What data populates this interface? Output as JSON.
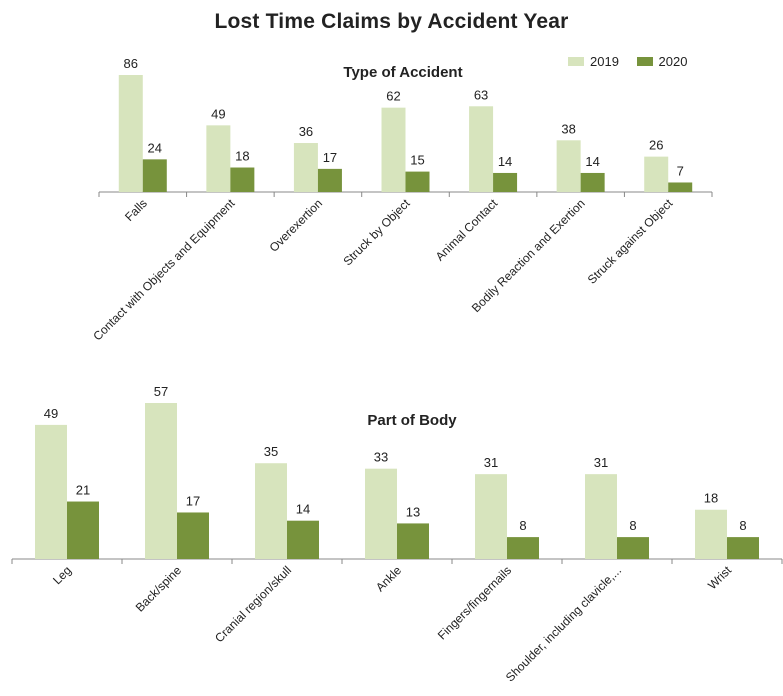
{
  "title": "Lost Time Claims by Accident Year",
  "legend": [
    {
      "name": "2019",
      "color": "#d7e4bd"
    },
    {
      "name": "2020",
      "color": "#77933c"
    }
  ],
  "chart_data": [
    {
      "type": "bar",
      "title": "Type of Accident",
      "categories": [
        "Falls",
        "Contact with Objects and Equipment",
        "Overexertion",
        "Struck by Object",
        "Animal Contact",
        "Bodily Reaction and Exertion",
        "Struck against Object"
      ],
      "series": [
        {
          "name": "2019",
          "color": "#d7e4bd",
          "values": [
            86,
            49,
            36,
            62,
            63,
            38,
            26
          ]
        },
        {
          "name": "2020",
          "color": "#77933c",
          "values": [
            24,
            18,
            17,
            15,
            14,
            14,
            7
          ]
        }
      ],
      "ylim": [
        0,
        86
      ],
      "grid": false,
      "legend_position": "top-right"
    },
    {
      "type": "bar",
      "title": "Part of Body",
      "categories": [
        "Leg",
        "Back/spine",
        "Cranial region/skull",
        "Ankle",
        "Fingers/fingernails",
        "Shoulder, including clavicle,...",
        "Wrist"
      ],
      "series": [
        {
          "name": "2019",
          "color": "#d7e4bd",
          "values": [
            49,
            57,
            35,
            33,
            31,
            31,
            18
          ]
        },
        {
          "name": "2020",
          "color": "#77933c",
          "values": [
            21,
            17,
            14,
            13,
            8,
            8,
            8
          ]
        }
      ],
      "ylim": [
        0,
        57
      ],
      "grid": false
    }
  ]
}
